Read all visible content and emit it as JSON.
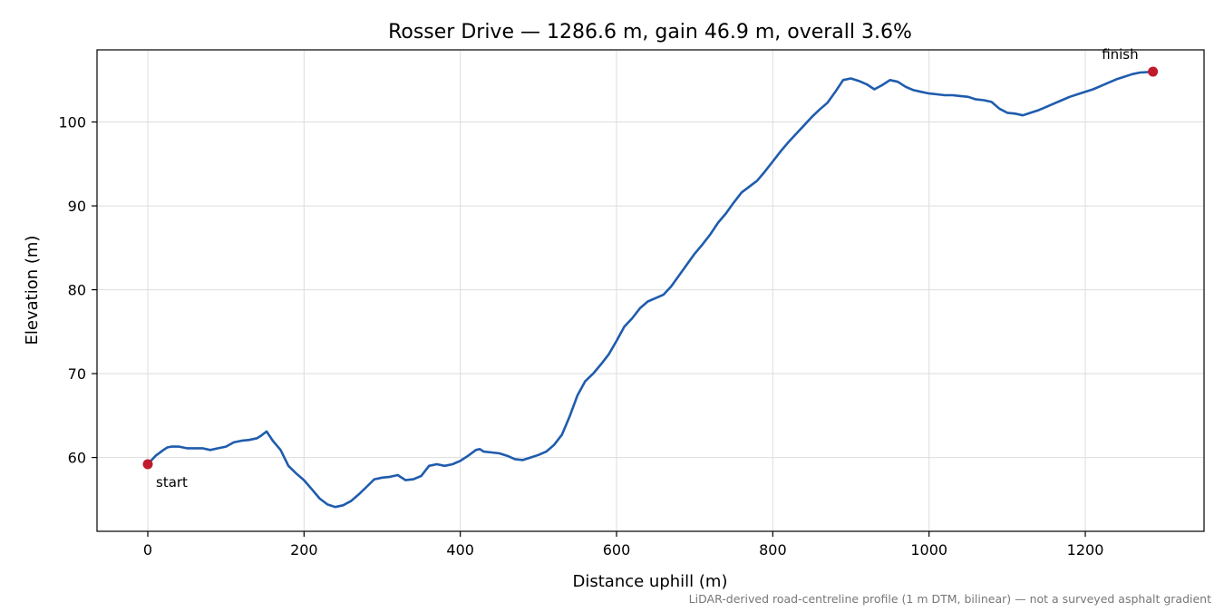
{
  "chart_data": {
    "type": "line",
    "title": "Rosser Drive — 1286.6 m, gain 46.9 m, overall 3.6%",
    "xlabel": "Distance uphill (m)",
    "ylabel": "Elevation (m)",
    "xlim": [
      -65,
      1352
    ],
    "ylim": [
      51.2,
      108.6
    ],
    "xticks": [
      0,
      200,
      400,
      600,
      800,
      1000,
      1200
    ],
    "yticks": [
      60,
      70,
      80,
      90,
      100
    ],
    "grid": true,
    "footnote": "LiDAR-derived road-centreline profile (1 m DTM, bilinear) — not a surveyed asphalt gradient",
    "series": [
      {
        "color": "#1f5cad",
        "x": [
          0,
          10,
          20,
          25,
          30,
          40,
          50,
          60,
          70,
          80,
          90,
          100,
          110,
          120,
          130,
          140,
          145,
          152,
          160,
          170,
          180,
          190,
          200,
          210,
          220,
          230,
          240,
          250,
          260,
          270,
          280,
          290,
          300,
          310,
          320,
          330,
          340,
          350,
          360,
          370,
          380,
          390,
          400,
          410,
          420,
          425,
          430,
          440,
          450,
          460,
          470,
          480,
          490,
          500,
          510,
          520,
          530,
          540,
          550,
          560,
          570,
          580,
          590,
          600,
          610,
          620,
          630,
          640,
          650,
          660,
          670,
          680,
          690,
          700,
          710,
          720,
          730,
          740,
          750,
          760,
          770,
          780,
          790,
          800,
          810,
          820,
          830,
          840,
          850,
          860,
          870,
          880,
          890,
          900,
          910,
          920,
          930,
          940,
          950,
          960,
          970,
          980,
          990,
          1000,
          1010,
          1020,
          1030,
          1040,
          1050,
          1060,
          1070,
          1080,
          1090,
          1100,
          1110,
          1120,
          1130,
          1140,
          1150,
          1160,
          1170,
          1180,
          1190,
          1200,
          1210,
          1220,
          1230,
          1240,
          1250,
          1260,
          1270,
          1286.6
        ],
        "y": [
          59.2,
          60.2,
          60.9,
          61.2,
          61.3,
          61.3,
          61.1,
          61.1,
          61.1,
          60.9,
          61.1,
          61.3,
          61.8,
          62.0,
          62.1,
          62.3,
          62.6,
          63.1,
          62.0,
          60.9,
          59.0,
          58.1,
          57.3,
          56.2,
          55.1,
          54.4,
          54.1,
          54.3,
          54.8,
          55.6,
          56.5,
          57.4,
          57.6,
          57.7,
          57.9,
          57.3,
          57.4,
          57.8,
          59.0,
          59.2,
          59.0,
          59.2,
          59.6,
          60.2,
          60.9,
          61.0,
          60.7,
          60.6,
          60.5,
          60.2,
          59.8,
          59.7,
          60.0,
          60.3,
          60.7,
          61.5,
          62.7,
          64.9,
          67.4,
          69.1,
          70.0,
          71.1,
          72.3,
          73.9,
          75.6,
          76.6,
          77.8,
          78.6,
          79.0,
          79.4,
          80.4,
          81.7,
          83.0,
          84.3,
          85.4,
          86.6,
          88.0,
          89.1,
          90.4,
          91.6,
          92.3,
          93.0,
          94.1,
          95.3,
          96.5,
          97.6,
          98.6,
          99.6,
          100.6,
          101.5,
          102.3,
          103.6,
          105.0,
          105.2,
          104.9,
          104.5,
          103.9,
          104.4,
          105.0,
          104.8,
          104.2,
          103.8,
          103.6,
          103.4,
          103.3,
          103.2,
          103.2,
          103.1,
          103.0,
          102.7,
          102.6,
          102.4,
          101.6,
          101.1,
          101.0,
          100.8,
          101.1,
          101.4,
          101.8,
          102.2,
          102.6,
          103.0,
          103.3,
          103.6,
          103.9,
          104.3,
          104.7,
          105.1,
          105.4,
          105.7,
          105.9,
          106.0
        ]
      }
    ],
    "annotations": [
      {
        "text": "start",
        "x": 0,
        "y": 59.2,
        "color": "#c01a2c"
      },
      {
        "text": "finish",
        "x": 1286.6,
        "y": 106.0,
        "color": "#c01a2c"
      }
    ]
  }
}
